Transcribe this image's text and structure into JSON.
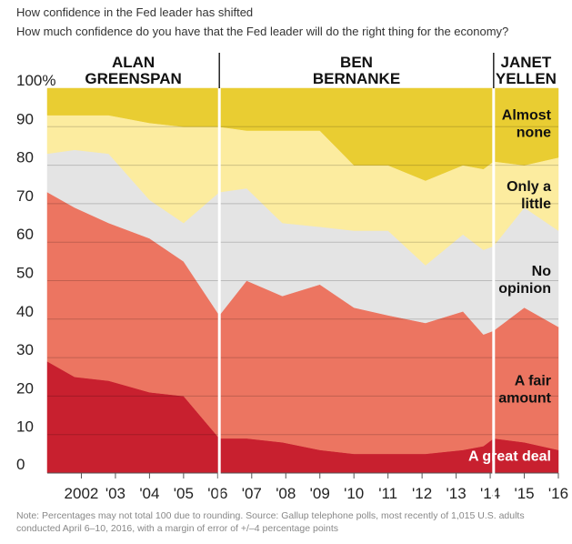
{
  "header": {
    "title": "How confidence in the Fed leader has shifted",
    "subtitle": "How much confidence do you have that the Fed leader will do the right thing for the economy?"
  },
  "note": "Note: Percentages may not total 100 due to rounding. Source: Gallup telephone polls, most recently of 1,015 U.S. adults conducted April 6–10, 2016, with a margin of error of +/–4 percentage points",
  "chart_data": {
    "type": "area",
    "stacked": true,
    "x": [
      2001.0,
      2001.8,
      2002.8,
      2004.0,
      2005.0,
      2006.05,
      2006.85,
      2007.9,
      2009.0,
      2010.0,
      2011.0,
      2012.1,
      2013.2,
      2013.8,
      2014.1,
      2015.0,
      2016.0
    ],
    "series": [
      {
        "name": "A great deal",
        "color": "#c8202f",
        "values": [
          29,
          25,
          24,
          21,
          20,
          9,
          9,
          8,
          6,
          5,
          5,
          5,
          6,
          7,
          9,
          8,
          6
        ]
      },
      {
        "name": "A fair amount",
        "color": "#ec7561",
        "values": [
          44,
          44,
          41,
          40,
          35,
          32,
          41,
          38,
          43,
          38,
          36,
          34,
          36,
          29,
          28,
          35,
          32
        ]
      },
      {
        "name": "No opinion",
        "color": "#e4e4e4",
        "values": [
          10,
          15,
          18,
          10,
          10,
          32,
          24,
          19,
          15,
          20,
          22,
          15,
          20,
          22,
          22,
          26,
          25
        ]
      },
      {
        "name": "Only a little",
        "color": "#fcec9f",
        "values": [
          10,
          9,
          10,
          20,
          25,
          17,
          15,
          24,
          25,
          17,
          17,
          22,
          18,
          21,
          22,
          11,
          19
        ]
      },
      {
        "name": "Almost none",
        "color": "#e9cd32",
        "values": [
          7,
          7,
          7,
          9,
          10,
          10,
          11,
          11,
          11,
          20,
          20,
          24,
          20,
          21,
          19,
          20,
          18
        ]
      }
    ],
    "xticks": [
      {
        "v": 2002,
        "label": "2002"
      },
      {
        "v": 2003,
        "label": "'03"
      },
      {
        "v": 2004,
        "label": "'04"
      },
      {
        "v": 2005,
        "label": "'05"
      },
      {
        "v": 2006,
        "label": "'06"
      },
      {
        "v": 2007,
        "label": "'07"
      },
      {
        "v": 2008,
        "label": "'08"
      },
      {
        "v": 2009,
        "label": "'09"
      },
      {
        "v": 2010,
        "label": "'10"
      },
      {
        "v": 2011,
        "label": "'11"
      },
      {
        "v": 2012,
        "label": "'12"
      },
      {
        "v": 2013,
        "label": "'13"
      },
      {
        "v": 2014,
        "label": "'14"
      },
      {
        "v": 2015,
        "label": "'15"
      },
      {
        "v": 2016,
        "label": "'16"
      }
    ],
    "yticks": [
      {
        "v": 0,
        "label": "0"
      },
      {
        "v": 10,
        "label": "10"
      },
      {
        "v": 20,
        "label": "20"
      },
      {
        "v": 30,
        "label": "30"
      },
      {
        "v": 40,
        "label": "40"
      },
      {
        "v": 50,
        "label": "50"
      },
      {
        "v": 60,
        "label": "60"
      },
      {
        "v": 70,
        "label": "70"
      },
      {
        "v": 80,
        "label": "80"
      },
      {
        "v": 90,
        "label": "90"
      },
      {
        "v": 100,
        "label": "100%"
      }
    ],
    "xlim": [
      2001.0,
      2016.0
    ],
    "ylim": [
      0,
      100
    ],
    "grid": "horizontal",
    "eras": [
      {
        "lines": [
          "ALAN",
          "GREENSPAN"
        ],
        "start": 2001.0,
        "end": 2006.05
      },
      {
        "lines": [
          "BEN",
          "BERNANKE"
        ],
        "start": 2006.05,
        "end": 2014.1
      },
      {
        "lines": [
          "JANET",
          "YELLEN"
        ],
        "start": 2014.1,
        "end": 2016.0
      }
    ],
    "era_dividers": [
      2006.05,
      2014.1
    ],
    "band_labels": [
      {
        "lines": [
          "Almost",
          "none"
        ],
        "series": 4,
        "align": "right"
      },
      {
        "lines": [
          "Only a",
          "little"
        ],
        "series": 3,
        "align": "right"
      },
      {
        "lines": [
          "No",
          "opinion"
        ],
        "series": 2,
        "align": "right"
      },
      {
        "lines": [
          "A fair",
          "amount"
        ],
        "series": 1,
        "align": "right"
      },
      {
        "lines": [
          "A great deal"
        ],
        "series": 0,
        "align": "right",
        "white": true
      }
    ]
  }
}
